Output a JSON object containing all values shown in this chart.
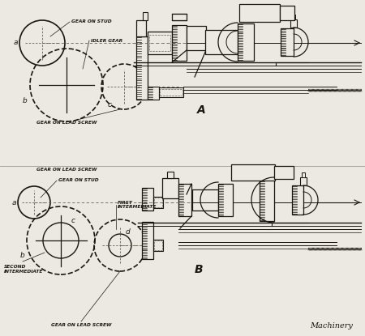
{
  "bg_color": "#ece9e3",
  "line_color": "#1a1612",
  "gray_color": "#888880",
  "dash_color": "#666055",
  "watermark": "Machinery",
  "label_A": "A",
  "label_B": "B",
  "top_labels": {
    "gear_on_stud": "GEAR ON STUD",
    "idler_gear": "IDLER GEAR",
    "gear_on_lead_screw": "GEAR ON LEAD SCREW",
    "a": "a",
    "b": "b",
    "c": "c"
  },
  "bot_labels": {
    "gear_on_stud": "GEAR ON STUD",
    "first_intermediate": "FIRST\nINTERMEDIATE",
    "second_intermediate": "SECOND\nINTERMEDIATE",
    "gear_on_lead_screw": "GEAR ON LEAD SCREW",
    "a": "a",
    "b": "b",
    "c": "c",
    "d": "d"
  }
}
